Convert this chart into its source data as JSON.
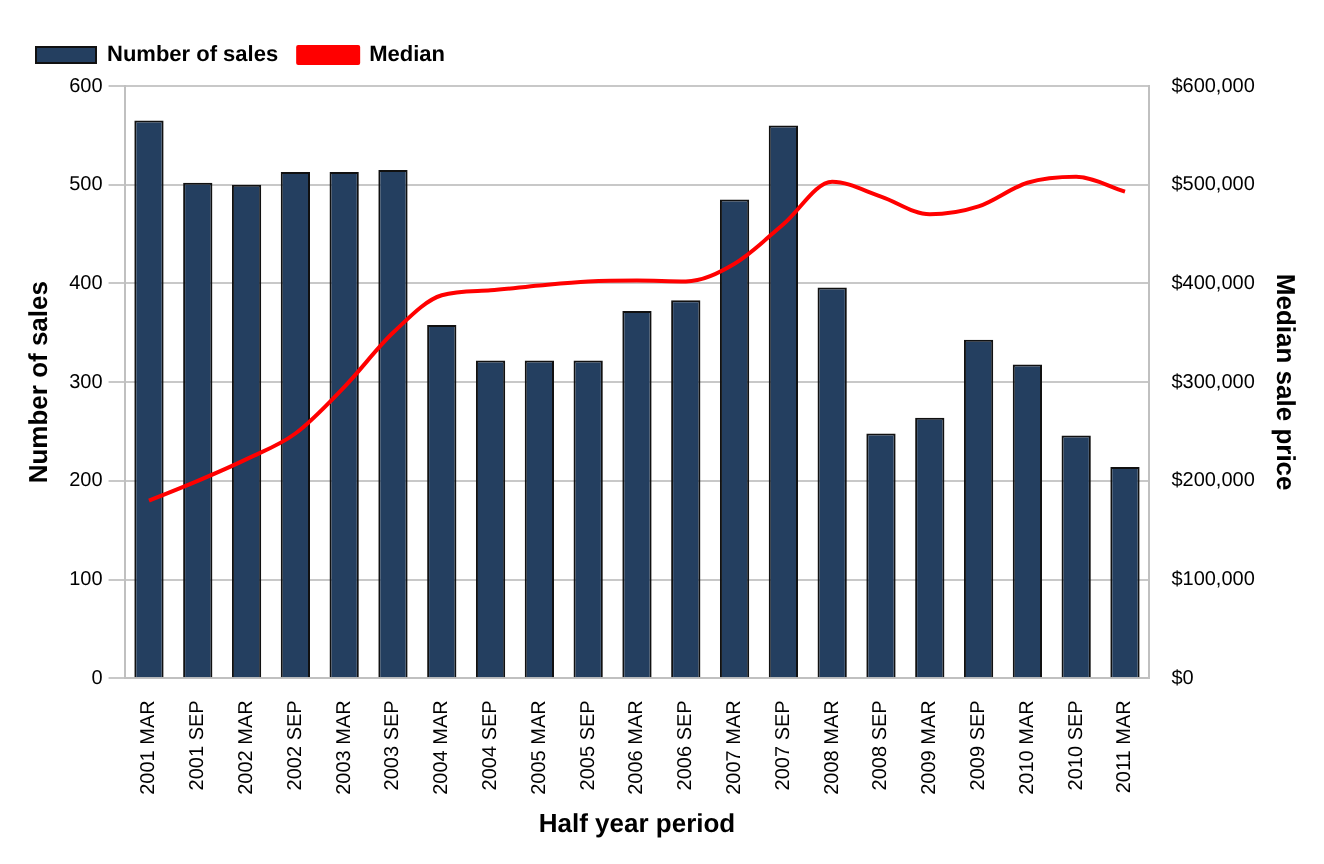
{
  "chart_data": {
    "type": "bar",
    "xlabel": "Half year period",
    "ylabel": "Number of sales",
    "y2label": "Median sale price",
    "categories": [
      "2001 MAR",
      "2001 SEP",
      "2002 MAR",
      "2002 SEP",
      "2003 MAR",
      "2003 SEP",
      "2004 MAR",
      "2004 SEP",
      "2005 MAR",
      "2005 SEP",
      "2006 MAR",
      "2006 SEP",
      "2007 MAR",
      "2007 SEP",
      "2008 MAR",
      "2008 SEP",
      "2009 MAR",
      "2009 SEP",
      "2010 MAR",
      "2010 SEP",
      "2011 MAR"
    ],
    "series": [
      {
        "name": "Number of sales",
        "color": "#243f60",
        "values": [
          565,
          502,
          500,
          513,
          513,
          515,
          358,
          322,
          322,
          322,
          372,
          383,
          485,
          560,
          396,
          248,
          264,
          343,
          318,
          246,
          214
        ]
      },
      {
        "name": "Median",
        "type": "line",
        "axis": "y2",
        "color": "#ff0000",
        "values": [
          180000,
          200000,
          222000,
          248000,
          295000,
          350000,
          388000,
          393000,
          398000,
          402000,
          403000,
          402000,
          420000,
          460000,
          503000,
          488000,
          470000,
          478000,
          502000,
          508000,
          493000
        ]
      }
    ],
    "ylim": [
      0,
      600
    ],
    "yticks": [
      0,
      100,
      200,
      300,
      400,
      500,
      600
    ],
    "y2lim": [
      0,
      600000
    ],
    "y2ticks": [
      {
        "value": 0,
        "label": "$0"
      },
      {
        "value": 100000,
        "label": "$100,000"
      },
      {
        "value": 200000,
        "label": "$200,000"
      },
      {
        "value": 300000,
        "label": "$300,000"
      },
      {
        "value": 400000,
        "label": "$400,000"
      },
      {
        "value": 500000,
        "label": "$500,000"
      },
      {
        "value": 600000,
        "label": "$600,000"
      }
    ],
    "grid": "y",
    "legend": "top left"
  }
}
